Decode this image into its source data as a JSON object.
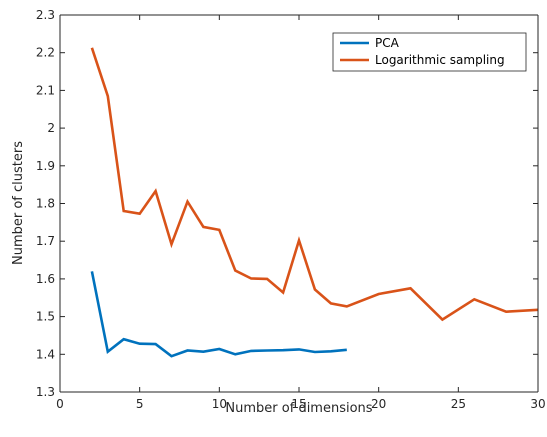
{
  "chart_data": {
    "type": "line",
    "title": "",
    "xlabel": "Number of dimensions",
    "ylabel": "Number of clusters",
    "xlim": [
      0,
      30
    ],
    "ylim": [
      1.3,
      2.3
    ],
    "xticks": [
      0,
      5,
      10,
      15,
      20,
      25,
      30
    ],
    "xtick_labels": [
      "0",
      "5",
      "10",
      "15",
      "20",
      "25",
      "30"
    ],
    "yticks": [
      1.3,
      1.4,
      1.5,
      1.6,
      1.7,
      1.8,
      1.9,
      2.0,
      2.1,
      2.2,
      2.3
    ],
    "ytick_labels": [
      "1.3",
      "1.4",
      "1.5",
      "1.6",
      "1.7",
      "1.8",
      "1.9",
      "2",
      "2.1",
      "2.2",
      "2.3"
    ],
    "grid": false,
    "legend_position": "top-right",
    "series": [
      {
        "name": "PCA",
        "color": "#0072bd",
        "x": [
          2,
          3,
          4,
          5,
          6,
          7,
          8,
          9,
          10,
          11,
          12,
          13,
          14,
          15,
          16,
          17,
          18
        ],
        "y": [
          1.62,
          1.407,
          1.44,
          1.428,
          1.427,
          1.395,
          1.41,
          1.407,
          1.414,
          1.4,
          1.409,
          1.41,
          1.411,
          1.413,
          1.406,
          1.408,
          1.412
        ]
      },
      {
        "name": "Logarithmic sampling",
        "color": "#d95319",
        "x": [
          2,
          3,
          4,
          5,
          6,
          7,
          8,
          9,
          10,
          11,
          12,
          13,
          14,
          15,
          16,
          17,
          18,
          20,
          22,
          24,
          26,
          28,
          30
        ],
        "y": [
          2.213,
          2.085,
          1.78,
          1.773,
          1.833,
          1.692,
          1.805,
          1.738,
          1.73,
          1.622,
          1.601,
          1.6,
          1.564,
          1.702,
          1.572,
          1.535,
          1.527,
          1.56,
          1.575,
          1.492,
          1.546,
          1.513,
          1.518
        ]
      }
    ]
  }
}
